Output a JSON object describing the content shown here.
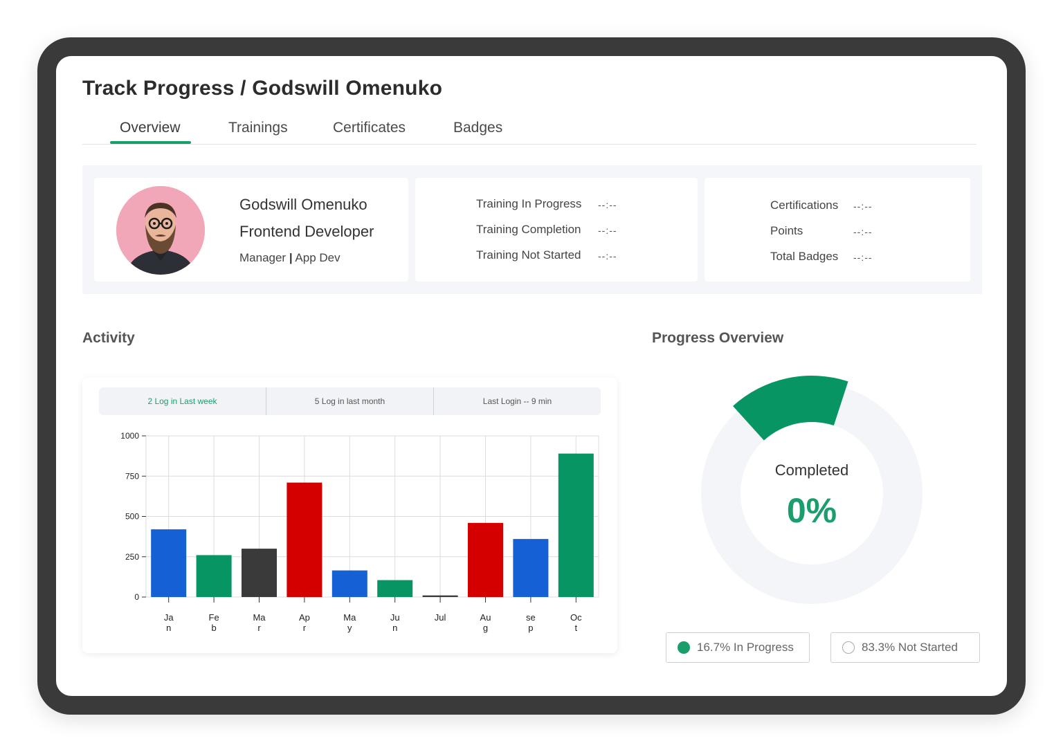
{
  "header": {
    "title": "Track Progress / Godswill Omenuko"
  },
  "tabs": [
    {
      "label": "Overview",
      "active": true
    },
    {
      "label": "Trainings"
    },
    {
      "label": "Certificates"
    },
    {
      "label": "Badges"
    }
  ],
  "profile": {
    "name": "Godswill Omenuko",
    "role": "Frontend Developer",
    "dept_left": "Manager",
    "dept_sep": "|",
    "dept_right": "App Dev"
  },
  "training_stats": [
    {
      "label": "Training In Progress",
      "value": "--:--"
    },
    {
      "label": "Training Completion",
      "value": "--:--"
    },
    {
      "label": "Training Not Started",
      "value": "--:--"
    }
  ],
  "achievement_stats": [
    {
      "label": "Certifications",
      "value": "--:--"
    },
    {
      "label": "Points",
      "value": "--:--"
    },
    {
      "label": "Total Badges",
      "value": "--:--"
    }
  ],
  "activity": {
    "title": "Activity",
    "tabs": [
      {
        "label": "2 Log in Last week",
        "active": true
      },
      {
        "label": "5 Log in last month"
      },
      {
        "label": "Last Login -- 9 min"
      }
    ]
  },
  "chart_data": {
    "type": "bar",
    "categories": [
      "Jan",
      "Feb",
      "Mar",
      "Apr",
      "May",
      "Jun",
      "Jul",
      "Aug",
      "sep",
      "Oct"
    ],
    "tick_labels": [
      [
        "Ja",
        "n"
      ],
      [
        "Fe",
        "b"
      ],
      [
        "Ma",
        "r"
      ],
      [
        "Ap",
        "r"
      ],
      [
        "Ma",
        "y"
      ],
      [
        "Ju",
        "n"
      ],
      [
        "Jul",
        ""
      ],
      [
        "Au",
        "g"
      ],
      [
        "se",
        "p"
      ],
      [
        "Oc",
        "t"
      ]
    ],
    "values": [
      420,
      260,
      300,
      710,
      165,
      105,
      10,
      460,
      360,
      890
    ],
    "colors": [
      "#1560d4",
      "#079564",
      "#3a3a3a",
      "#d40000",
      "#1560d4",
      "#079564",
      "#3a3a3a",
      "#d40000",
      "#1560d4",
      "#079564"
    ],
    "yticks": [
      0,
      250,
      500,
      750,
      1000
    ],
    "ylim": [
      0,
      1000
    ],
    "grid": true,
    "title": "",
    "xlabel": "",
    "ylabel": ""
  },
  "progress": {
    "title": "Progress Overview",
    "center_label": "Completed",
    "center_value": "0%",
    "in_progress_fraction": 0.167,
    "in_progress_label": "16.7% In Progress",
    "not_started_label": "83.3% Not Started",
    "colors": {
      "accent": "#079564",
      "track": "#f3f5f8"
    }
  }
}
